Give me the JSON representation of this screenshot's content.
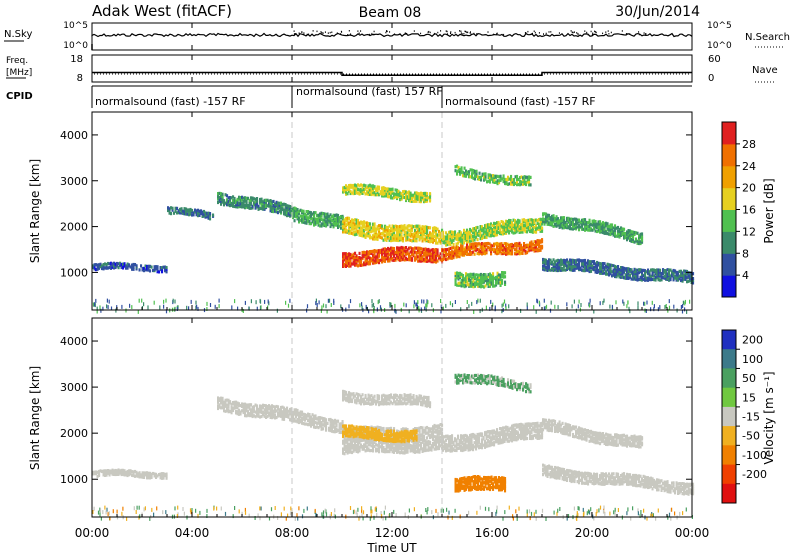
{
  "header": {
    "station": "Adak West (fitACF)",
    "beam": "Beam 08",
    "date": "30/Jun/2014"
  },
  "time_axis": {
    "ticks": [
      "00:00",
      "04:00",
      "08:00",
      "12:00",
      "16:00",
      "20:00",
      "00:00"
    ],
    "label": "Time UT"
  },
  "noise_panel": {
    "left_label": "N.Sky",
    "left_ticks": [
      "10^5",
      "10^0"
    ],
    "right_label": "N.Search",
    "right_ticks": [
      "10^5",
      "10^0"
    ]
  },
  "freq_panel": {
    "left_label_1": "Freq.",
    "left_label_2": "[MHz]",
    "left_ticks": [
      "18",
      "8"
    ],
    "right_label": "Nave",
    "right_ticks": [
      "60",
      "0"
    ]
  },
  "cpid_panel": {
    "label": "CPID",
    "segments": [
      {
        "text": "normalsound (fast) -157 RF",
        "start_hour": 0
      },
      {
        "text": "normalsound (fast) 157 RF",
        "start_hour": 8
      },
      {
        "text": "normalsound (fast) -157 RF",
        "start_hour": 14
      }
    ]
  },
  "power_panel": {
    "ylabel": "Slant Range [km]",
    "yticks": [
      "1000",
      "2000",
      "3000",
      "4000"
    ],
    "cbar_label": "Power [dB]",
    "cbar_ticks": [
      "4",
      "8",
      "12",
      "16",
      "20",
      "24",
      "28"
    ],
    "cbar_colors": [
      "#1010e0",
      "#3050a0",
      "#3a8a6a",
      "#50c050",
      "#e6d020",
      "#f0a000",
      "#f07000",
      "#e02020"
    ]
  },
  "velocity_panel": {
    "ylabel": "Slant Range [km]",
    "yticks": [
      "1000",
      "2000",
      "3000",
      "4000"
    ],
    "cbar_label": "Velocity [m s⁻¹]",
    "cbar_ticks": [
      "200",
      "100",
      "50",
      "15",
      "-15",
      "-50",
      "-100",
      "-200"
    ],
    "cbar_colors": [
      "#2030c0",
      "#3c7a8a",
      "#4aa060",
      "#70c840",
      "#c8c8c0",
      "#f0b020",
      "#f08000",
      "#f04000",
      "#e01010"
    ]
  },
  "chart_data": {
    "type": "heatmap",
    "x_range_hours": [
      0,
      24
    ],
    "y_range_km": [
      180,
      4500
    ],
    "freq_mhz": {
      "hours": [
        0,
        10,
        18,
        24
      ],
      "values": [
        11.5,
        10.5,
        11.5,
        11.5
      ]
    },
    "power_bands": [
      {
        "t0": 0.0,
        "t1": 3.0,
        "r0": 1150,
        "r1": 1150,
        "w": 130,
        "dB": 6
      },
      {
        "t0": 3.0,
        "t1": 4.8,
        "r0": 2400,
        "r1": 2250,
        "w": 150,
        "dB": 8
      },
      {
        "t0": 5.0,
        "t1": 8.0,
        "r0": 2700,
        "r1": 2350,
        "w": 250,
        "dB": 10
      },
      {
        "t0": 8.0,
        "t1": 10.0,
        "r0": 2350,
        "r1": 2100,
        "w": 300,
        "dB": 12
      },
      {
        "t0": 10.0,
        "t1": 14.0,
        "r0": 2050,
        "r1": 1800,
        "w": 350,
        "dB": 18
      },
      {
        "t0": 14.0,
        "t1": 18.0,
        "r0": 1800,
        "r1": 2100,
        "w": 300,
        "dB": 16
      },
      {
        "t0": 10.0,
        "t1": 14.0,
        "r0": 1350,
        "r1": 1450,
        "w": 300,
        "dB": 28
      },
      {
        "t0": 14.0,
        "t1": 18.0,
        "r0": 1450,
        "r1": 1650,
        "w": 250,
        "dB": 26
      },
      {
        "t0": 10.0,
        "t1": 13.5,
        "r0": 2850,
        "r1": 2700,
        "w": 220,
        "dB": 16
      },
      {
        "t0": 14.5,
        "t1": 17.5,
        "r0": 3250,
        "r1": 3000,
        "w": 200,
        "dB": 14
      },
      {
        "t0": 14.5,
        "t1": 16.5,
        "r0": 900,
        "r1": 900,
        "w": 300,
        "dB": 14
      },
      {
        "t0": 18.0,
        "t1": 22.0,
        "r0": 2250,
        "r1": 1800,
        "w": 250,
        "dB": 12
      },
      {
        "t0": 18.0,
        "t1": 24.0,
        "r0": 1250,
        "r1": 900,
        "w": 250,
        "dB": 8
      }
    ],
    "velocity_bands": [
      {
        "t0": 0.0,
        "t1": 3.0,
        "r0": 1150,
        "r1": 1150,
        "w": 130,
        "v": 0
      },
      {
        "t0": 5.0,
        "t1": 10.0,
        "r0": 2700,
        "r1": 2200,
        "w": 280,
        "v": 0
      },
      {
        "t0": 10.0,
        "t1": 14.0,
        "r0": 1850,
        "r1": 1950,
        "w": 550,
        "v": 0
      },
      {
        "t0": 10.0,
        "t1": 13.0,
        "r0": 2050,
        "r1": 2000,
        "w": 250,
        "v": -40
      },
      {
        "t0": 14.0,
        "t1": 18.0,
        "r0": 1800,
        "r1": 2100,
        "w": 350,
        "v": 0
      },
      {
        "t0": 10.0,
        "t1": 13.5,
        "r0": 2850,
        "r1": 2700,
        "w": 220,
        "v": 0
      },
      {
        "t0": 14.5,
        "t1": 17.5,
        "r0": 3250,
        "r1": 3050,
        "w": 200,
        "v": 20
      },
      {
        "t0": 14.5,
        "t1": 16.5,
        "r0": 900,
        "r1": 950,
        "w": 300,
        "v": -60
      },
      {
        "t0": 18.0,
        "t1": 22.0,
        "r0": 2200,
        "r1": 1800,
        "w": 250,
        "v": 0
      },
      {
        "t0": 18.0,
        "t1": 24.0,
        "r0": 1200,
        "r1": 850,
        "w": 250,
        "v": 0
      }
    ]
  }
}
